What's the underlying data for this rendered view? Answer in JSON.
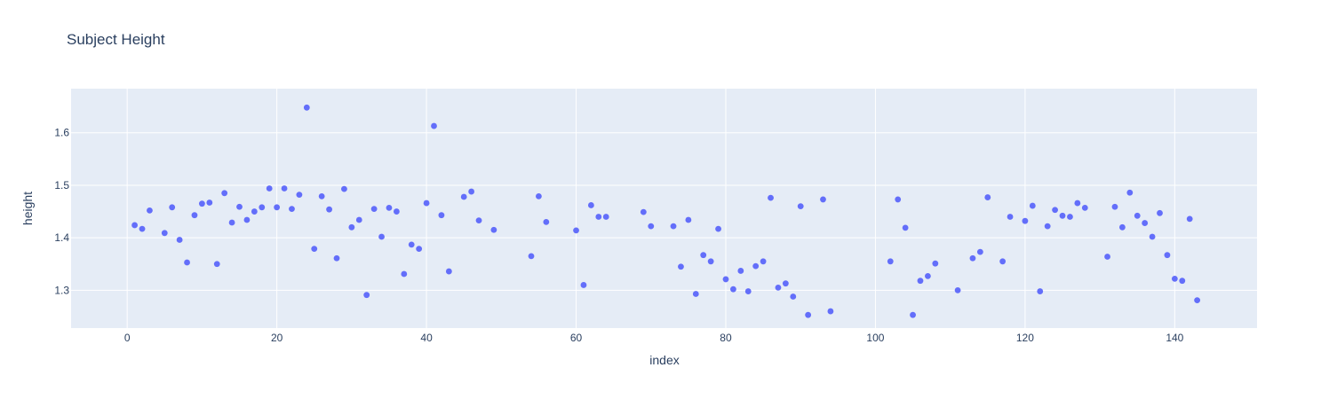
{
  "chart_data": {
    "type": "scatter",
    "title": "Subject Height",
    "xlabel": "index",
    "ylabel": "height",
    "xlim": [
      -7.5,
      151
    ],
    "ylim": [
      1.228,
      1.684
    ],
    "x_ticks": [
      0,
      20,
      40,
      60,
      80,
      100,
      120,
      140
    ],
    "y_ticks": [
      1.3,
      1.4,
      1.5,
      1.6
    ],
    "grid": true,
    "legend": "none",
    "colors": {
      "marker": "#636efa",
      "plot_bg": "#e5ecf6",
      "grid": "#ffffff",
      "text": "#2a3f5f"
    },
    "points": [
      [
        1,
        1.424
      ],
      [
        2,
        1.417
      ],
      [
        3,
        1.452
      ],
      [
        5,
        1.409
      ],
      [
        6,
        1.458
      ],
      [
        7,
        1.396
      ],
      [
        8,
        1.353
      ],
      [
        9,
        1.443
      ],
      [
        10,
        1.465
      ],
      [
        11,
        1.467
      ],
      [
        12,
        1.35
      ],
      [
        13,
        1.485
      ],
      [
        14,
        1.429
      ],
      [
        15,
        1.459
      ],
      [
        16,
        1.434
      ],
      [
        17,
        1.45
      ],
      [
        18,
        1.458
      ],
      [
        19,
        1.494
      ],
      [
        20,
        1.458
      ],
      [
        21,
        1.494
      ],
      [
        22,
        1.455
      ],
      [
        23,
        1.482
      ],
      [
        24,
        1.648
      ],
      [
        25,
        1.379
      ],
      [
        26,
        1.479
      ],
      [
        27,
        1.454
      ],
      [
        28,
        1.361
      ],
      [
        29,
        1.493
      ],
      [
        30,
        1.42
      ],
      [
        31,
        1.434
      ],
      [
        32,
        1.291
      ],
      [
        33,
        1.455
      ],
      [
        34,
        1.402
      ],
      [
        35,
        1.457
      ],
      [
        36,
        1.45
      ],
      [
        37,
        1.331
      ],
      [
        38,
        1.387
      ],
      [
        39,
        1.379
      ],
      [
        40,
        1.466
      ],
      [
        41,
        1.613
      ],
      [
        42,
        1.443
      ],
      [
        43,
        1.336
      ],
      [
        45,
        1.478
      ],
      [
        46,
        1.488
      ],
      [
        47,
        1.433
      ],
      [
        49,
        1.415
      ],
      [
        54,
        1.365
      ],
      [
        55,
        1.479
      ],
      [
        56,
        1.43
      ],
      [
        60,
        1.414
      ],
      [
        61,
        1.31
      ],
      [
        62,
        1.462
      ],
      [
        63,
        1.44
      ],
      [
        64,
        1.44
      ],
      [
        69,
        1.449
      ],
      [
        70,
        1.422
      ],
      [
        73,
        1.422
      ],
      [
        74,
        1.345
      ],
      [
        75,
        1.434
      ],
      [
        76,
        1.293
      ],
      [
        77,
        1.367
      ],
      [
        78,
        1.355
      ],
      [
        79,
        1.417
      ],
      [
        80,
        1.321
      ],
      [
        81,
        1.302
      ],
      [
        82,
        1.337
      ],
      [
        83,
        1.298
      ],
      [
        84,
        1.346
      ],
      [
        85,
        1.355
      ],
      [
        86,
        1.476
      ],
      [
        87,
        1.305
      ],
      [
        88,
        1.313
      ],
      [
        89,
        1.288
      ],
      [
        90,
        1.46
      ],
      [
        91,
        1.253
      ],
      [
        93,
        1.473
      ],
      [
        94,
        1.26
      ],
      [
        102,
        1.355
      ],
      [
        103,
        1.473
      ],
      [
        104,
        1.419
      ],
      [
        105,
        1.253
      ],
      [
        106,
        1.318
      ],
      [
        107,
        1.327
      ],
      [
        108,
        1.351
      ],
      [
        111,
        1.3
      ],
      [
        113,
        1.361
      ],
      [
        114,
        1.373
      ],
      [
        115,
        1.477
      ],
      [
        117,
        1.355
      ],
      [
        118,
        1.44
      ],
      [
        120,
        1.432
      ],
      [
        121,
        1.461
      ],
      [
        122,
        1.298
      ],
      [
        123,
        1.422
      ],
      [
        124,
        1.453
      ],
      [
        125,
        1.442
      ],
      [
        126,
        1.44
      ],
      [
        127,
        1.466
      ],
      [
        128,
        1.457
      ],
      [
        131,
        1.364
      ],
      [
        132,
        1.459
      ],
      [
        133,
        1.42
      ],
      [
        134,
        1.486
      ],
      [
        135,
        1.442
      ],
      [
        136,
        1.428
      ],
      [
        137,
        1.402
      ],
      [
        138,
        1.447
      ],
      [
        139,
        1.367
      ],
      [
        140,
        1.322
      ],
      [
        141,
        1.318
      ],
      [
        142,
        1.436
      ],
      [
        143,
        1.281
      ]
    ]
  }
}
